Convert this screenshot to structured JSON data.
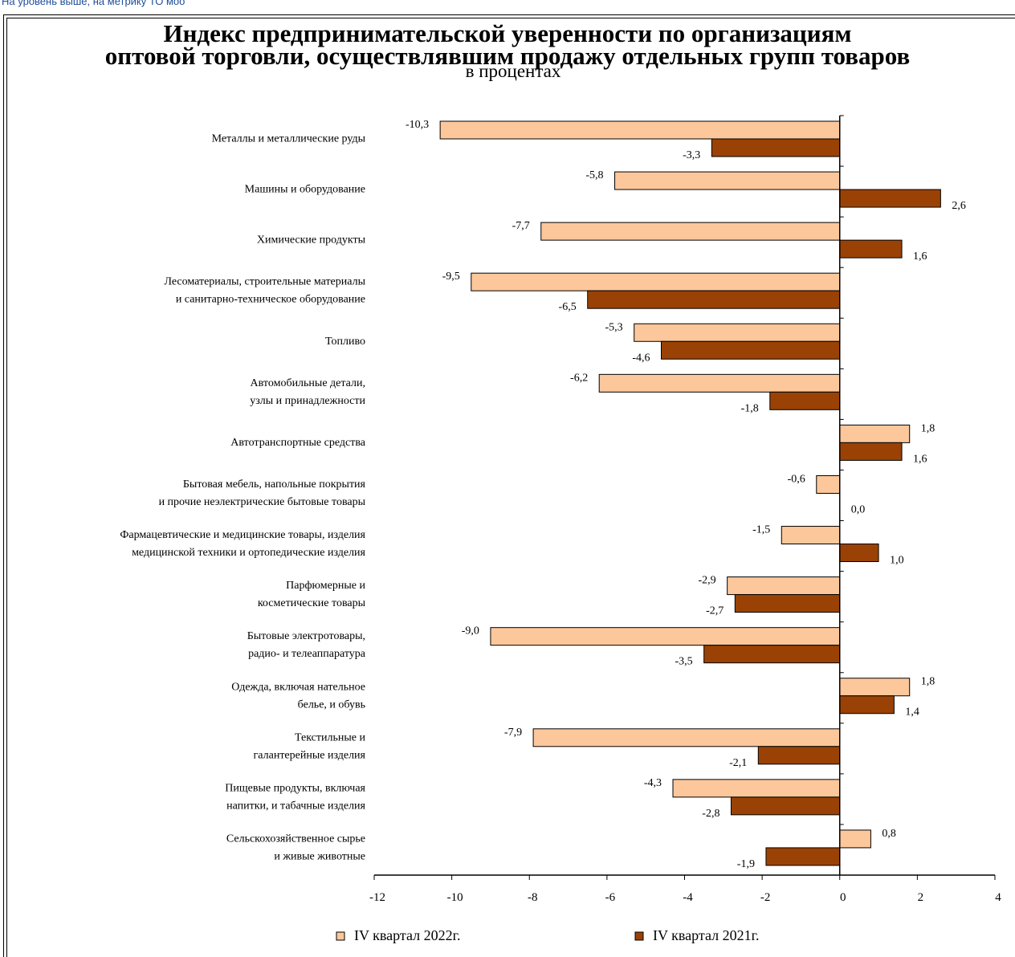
{
  "top_link": "На уровень выше, на метрику ТО моо",
  "chart_data": {
    "type": "bar",
    "orientation": "horizontal",
    "title_lines": [
      "Индекс предпринимательской уверенности  по организациям",
      "оптовой торговли, осуществлявшим продажу отдельных групп товаров"
    ],
    "subtitle": "в процентах",
    "categories": [
      [
        "Металлы и металлические руды"
      ],
      [
        "Машины и оборудование"
      ],
      [
        "Химические продукты"
      ],
      [
        "Лесоматериалы, строительные материалы",
        "и санитарно-техническое оборудование"
      ],
      [
        "Топливо"
      ],
      [
        "Автомобильные детали,",
        "узлы и принадлежности"
      ],
      [
        "Автотранспортные средства"
      ],
      [
        "Бытовая мебель, напольные покрытия",
        "и прочие неэлектрические бытовые товары"
      ],
      [
        "Фармацевтические и медицинские товары, изделия",
        "медицинской техники и ортопедические изделия"
      ],
      [
        "Парфюмерные и",
        "косметические товары"
      ],
      [
        "Бытовые электротовары,",
        "радио- и телеаппаратура"
      ],
      [
        "Одежда, включая нательное",
        "белье, и обувь"
      ],
      [
        "Текстильные и",
        "галантерейные изделия"
      ],
      [
        "Пищевые продукты, включая",
        "напитки, и табачные изделия"
      ],
      [
        "Сельскохозяйственное сырье",
        "и живые животные"
      ]
    ],
    "series": [
      {
        "name": "IV квартал 2022г.",
        "color": "#fcc79b",
        "values": [
          -10.3,
          -5.8,
          -7.7,
          -9.5,
          -5.3,
          -6.2,
          1.8,
          -0.6,
          -1.5,
          -2.9,
          -9.0,
          1.8,
          -7.9,
          -4.3,
          0.8
        ],
        "labels": [
          "-10,3",
          "-5,8",
          "-7,7",
          "-9,5",
          "-5,3",
          "-6,2",
          "1,8",
          "-0,6",
          "-1,5",
          "-2,9",
          "-9,0",
          "1,8",
          "-7,9",
          "-4,3",
          "0,8"
        ]
      },
      {
        "name": "IV квартал 2021г.",
        "color": "#9a4205",
        "values": [
          -3.3,
          2.6,
          1.6,
          -6.5,
          -4.6,
          -1.8,
          1.6,
          0.0,
          1.0,
          -2.7,
          -3.5,
          1.4,
          -2.1,
          -2.8,
          -1.9
        ],
        "labels": [
          "-3,3",
          "2,6",
          "1,6",
          "-6,5",
          "-4,6",
          "-1,8",
          "1,6",
          "0,0",
          "1,0",
          "-2,7",
          "-3,5",
          "1,4",
          "-2,1",
          "-2,8",
          "-1,9"
        ]
      }
    ],
    "xlim": [
      -12,
      4
    ],
    "xticks": [
      -12,
      -10,
      -8,
      -6,
      -4,
      -2,
      0,
      2,
      4
    ],
    "xtick_labels": [
      "-12",
      "-10",
      "-8",
      "-6",
      "-4",
      "-2",
      "0",
      "2",
      "4"
    ],
    "legend_position": "bottom",
    "grid": false
  }
}
